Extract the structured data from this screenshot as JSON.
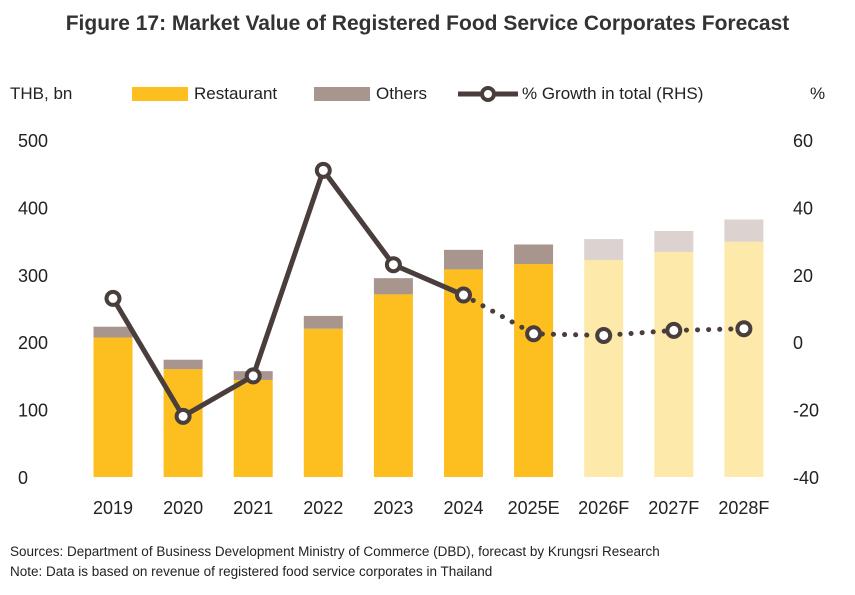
{
  "title": "Figure 17: Market Value of Registered Food Service Corporates Forecast",
  "left_unit": "THB, bn",
  "right_unit": "%",
  "legend": {
    "restaurant": "Restaurant",
    "others": "Others",
    "growth": "% Growth in total (RHS)"
  },
  "colors": {
    "restaurant": "#FDBE1F",
    "restaurant_forecast": "#FDE9A9",
    "others": "#A8958E",
    "others_forecast": "#DCD2CF",
    "growth_line": "#4A3E3C"
  },
  "sources": "Sources:  Department of Business Development Ministry of Commerce (DBD), forecast by Krungsri Research",
  "note": "Note: Data is based on revenue of registered food service corporates in Thailand",
  "chart_data": {
    "type": "bar",
    "stacked": true,
    "categories": [
      "2019",
      "2020",
      "2021",
      "2022",
      "2023",
      "2024",
      "2025E",
      "2026F",
      "2027F",
      "2028F"
    ],
    "series": [
      {
        "name": "Restaurant",
        "values": [
          207,
          160,
          144,
          220,
          271,
          308,
          316,
          322,
          334,
          349
        ]
      },
      {
        "name": "Others",
        "values": [
          16,
          14,
          13,
          19,
          24,
          29,
          29,
          31,
          31,
          33
        ]
      }
    ],
    "line_series": {
      "name": "% Growth in total (RHS)",
      "values": [
        13,
        -22,
        -10,
        51,
        23,
        14,
        2.5,
        2,
        3.5,
        4
      ],
      "forecast_start_index": 5
    },
    "ylim": [
      0,
      500
    ],
    "yticks": [
      0,
      100,
      200,
      300,
      400,
      500
    ],
    "y2lim": [
      -40,
      60
    ],
    "y2ticks": [
      -40,
      -20,
      0,
      20,
      40,
      60
    ],
    "forecast_from_index": 7,
    "legend_position": "top"
  }
}
